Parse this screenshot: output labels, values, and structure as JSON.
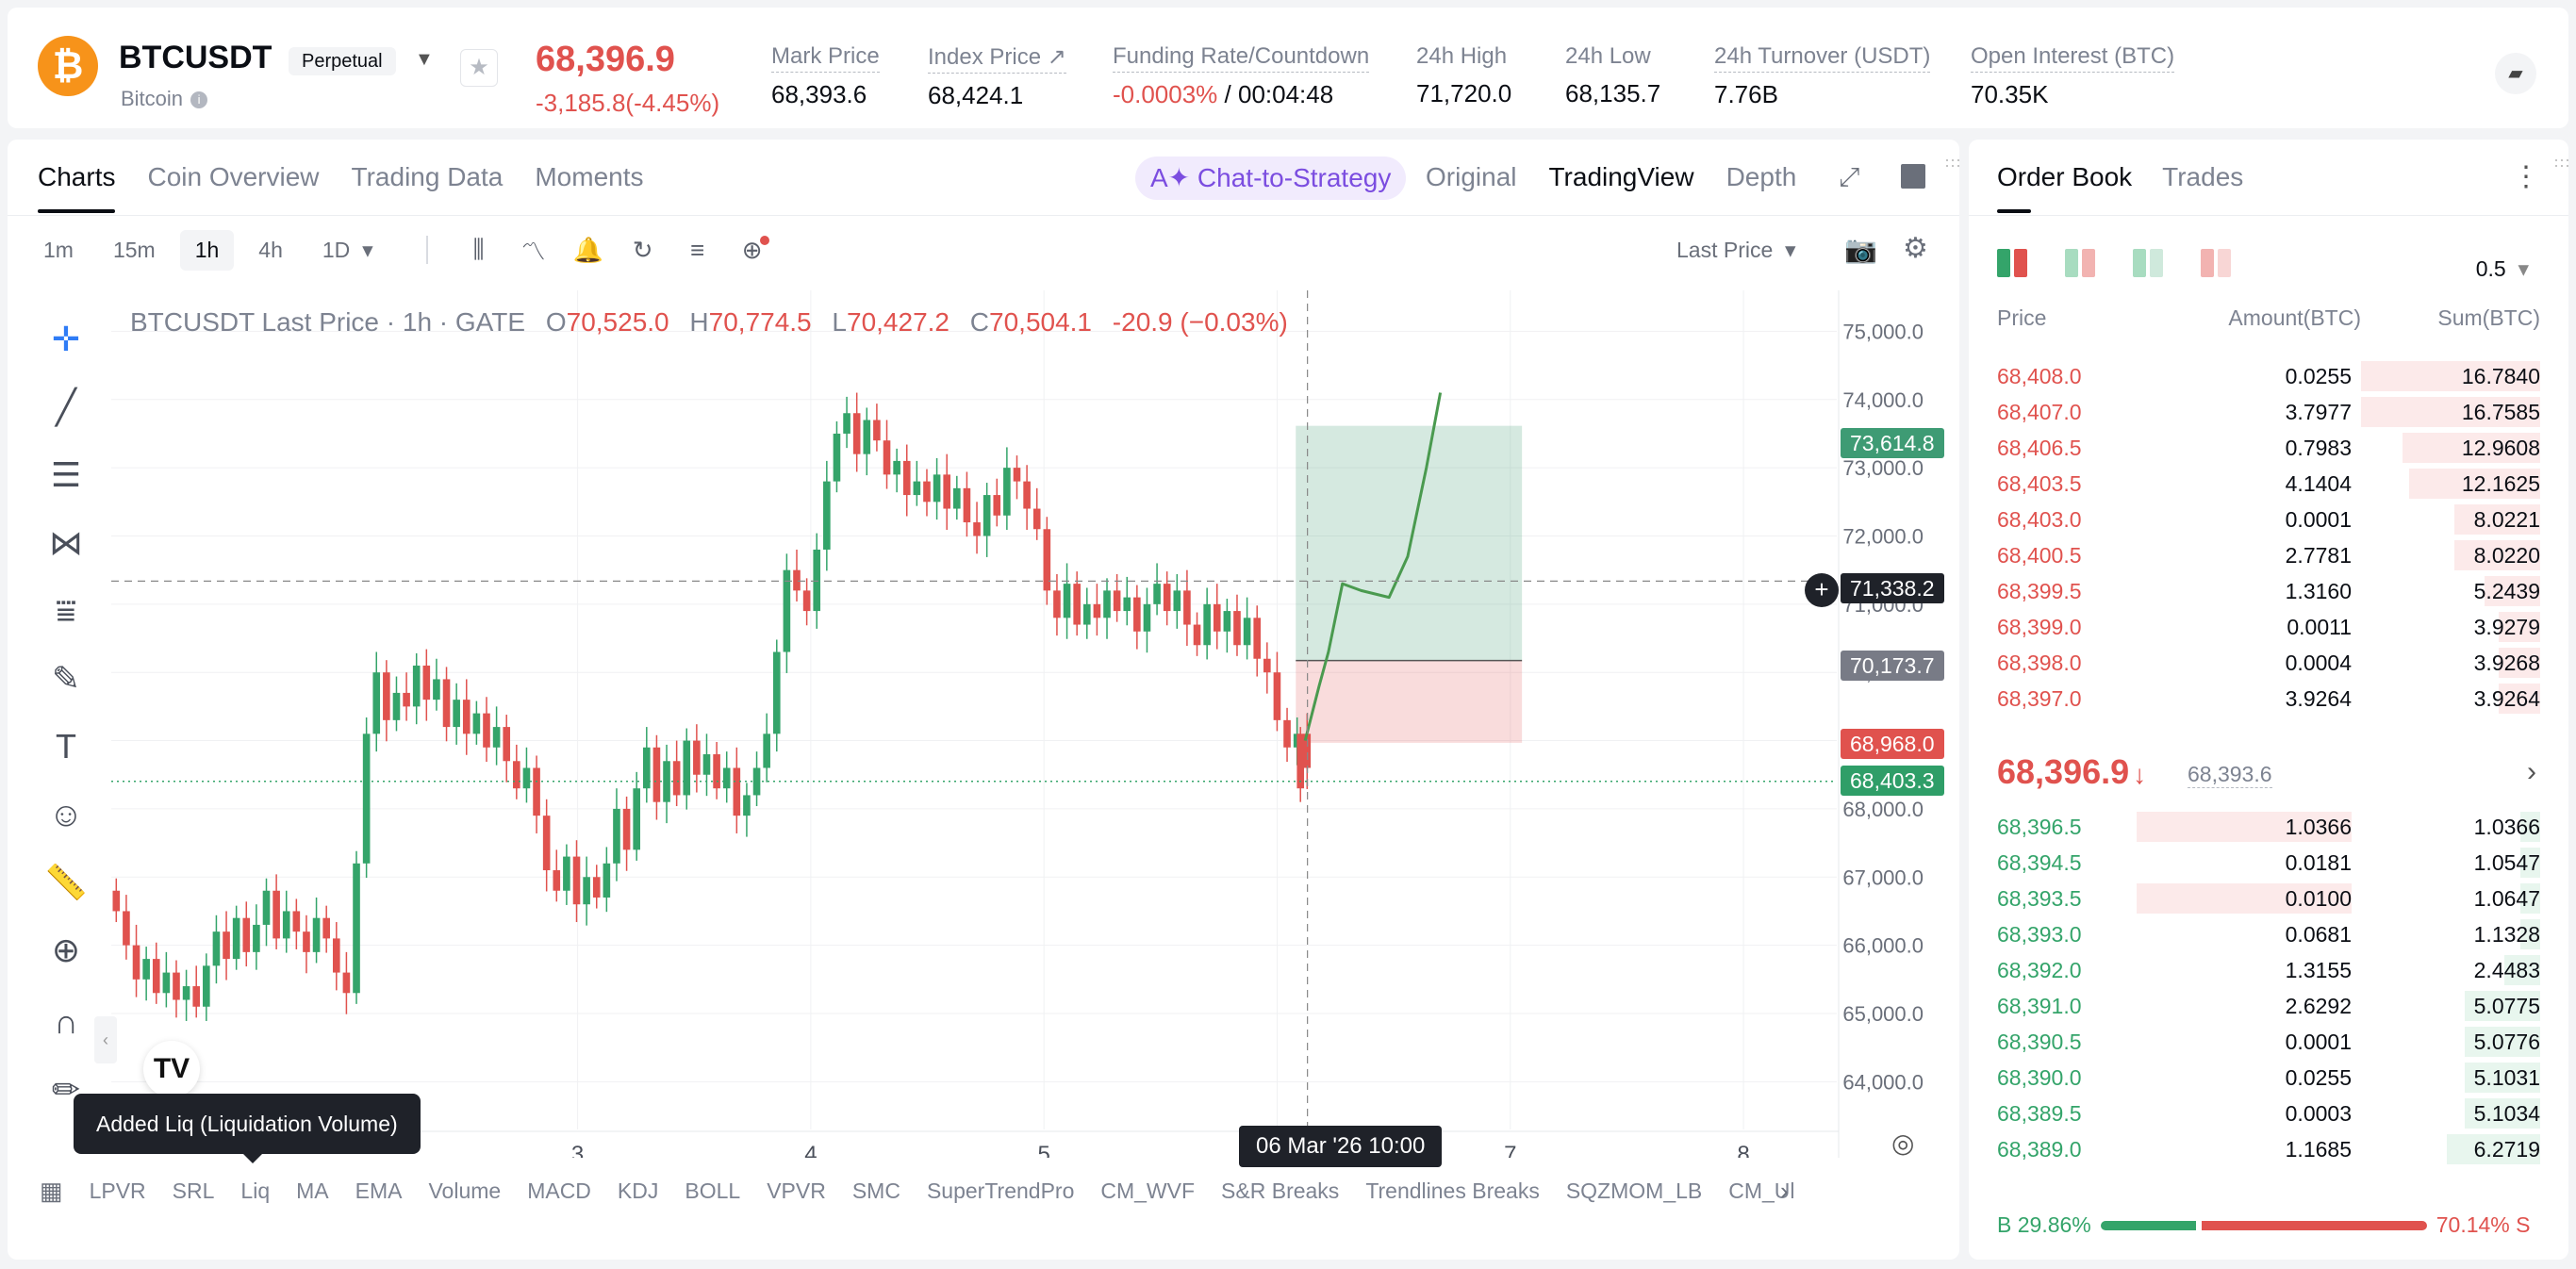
{
  "header": {
    "pair": "BTCUSDT",
    "contract_type": "Perpetual",
    "coin_name": "Bitcoin",
    "last_price": "68,396.9",
    "change": "-3,185.8(-4.45%)",
    "stats": [
      {
        "label": "Mark Price",
        "value": "68,393.6"
      },
      {
        "label": "Index Price ↗",
        "value": "68,424.1"
      },
      {
        "label": "Funding Rate/Countdown",
        "value": "-0.0003%",
        "value2": " / 00:04:48"
      },
      {
        "label": "24h High",
        "value": "71,720.0"
      },
      {
        "label": "24h Low",
        "value": "68,135.7"
      },
      {
        "label": "24h Turnover (USDT)",
        "value": "7.76B"
      },
      {
        "label": "Open Interest (BTC)",
        "value": "70.35K"
      }
    ]
  },
  "chart_panel": {
    "tabs": [
      "Charts",
      "Coin Overview",
      "Trading Data",
      "Moments"
    ],
    "strategy_button": "Chat-to-Strategy",
    "views": [
      "Original",
      "TradingView",
      "Depth"
    ],
    "timeframes": [
      "1m",
      "15m",
      "1h",
      "4h",
      "1D"
    ],
    "active_timeframe": "1h",
    "price_source": "Last Price",
    "ohlc": {
      "title": "BTCUSDT Last Price · 1h · GATE",
      "o_label": "O",
      "o": "70,525.0",
      "h_label": "H",
      "h": "70,774.5",
      "l_label": "L",
      "l": "70,427.2",
      "c_label": "C",
      "c": "70,504.1",
      "change": "-20.9 (−0.03%)"
    },
    "tooltip": "Added Liq (Liquidation Volume)",
    "crosshair_date": "06 Mar '26   10:00",
    "indicators": [
      "LPVR",
      "SRL",
      "Liq",
      "MA",
      "EMA",
      "Volume",
      "MACD",
      "KDJ",
      "BOLL",
      "VPVR",
      "SMC",
      "SuperTrendPro",
      "CM_WVF",
      "S&R Breaks",
      "Trendlines Breaks",
      "SQZMOM_LB",
      "CM_Ul"
    ],
    "price_tags": {
      "target": "73,614.8",
      "crosshair": "71,338.2",
      "entry": "70,173.7",
      "stop": "68,968.0",
      "last": "68,403.3"
    }
  },
  "chart_data": {
    "type": "candlestick",
    "y_ticks": [
      "75,000.0",
      "74,000.0",
      "73,000.0",
      "72,000.0",
      "71,000.0",
      "70,000.0",
      "69,000.0",
      "68,000.0",
      "67,000.0",
      "66,000.0",
      "65,000.0",
      "64,000.0"
    ],
    "y_tick_values": [
      75000,
      74000,
      73000,
      72000,
      71000,
      70000,
      69000,
      68000,
      67000,
      66000,
      65000,
      64000
    ],
    "x_ticks": [
      "3",
      "4",
      "5",
      "7",
      "8"
    ],
    "x_tick_positions": [
      3,
      4,
      5,
      7,
      8
    ],
    "ylim": [
      63300,
      75600
    ],
    "xlim": [
      1.0,
      8.4
    ],
    "position": {
      "entry": 70173.7,
      "target": 73614.8,
      "stop": 68968.0,
      "x_start": 6.08,
      "x_end": 7.05
    },
    "crosshair": {
      "x": 6.13,
      "y": 71338.2
    },
    "last_price": 68403.3,
    "closes": [
      66500,
      66000,
      65500,
      65800,
      65300,
      65600,
      65200,
      65400,
      65100,
      65700,
      66200,
      65800,
      66400,
      65900,
      66300,
      66800,
      66100,
      66500,
      66200,
      65900,
      66400,
      66100,
      65600,
      65300,
      67200,
      69100,
      70000,
      69300,
      69700,
      69500,
      70100,
      69600,
      69900,
      69200,
      69600,
      69100,
      69400,
      68900,
      69200,
      68700,
      68300,
      68600,
      67900,
      67100,
      66800,
      67300,
      66600,
      67000,
      66700,
      67200,
      68000,
      67400,
      68300,
      68900,
      68100,
      68700,
      68200,
      69000,
      68500,
      68800,
      68300,
      68600,
      67900,
      68200,
      68600,
      69100,
      70300,
      71500,
      71200,
      70900,
      71800,
      72800,
      73500,
      73800,
      73200,
      73700,
      73400,
      72900,
      73100,
      72600,
      72800,
      72500,
      72900,
      72400,
      72700,
      72200,
      72000,
      72600,
      72300,
      73000,
      72800,
      72400,
      72100,
      71200,
      70800,
      71300,
      70700,
      71000,
      70800,
      71200,
      70900,
      71100,
      70600,
      71000,
      71300,
      70900,
      71200,
      70700,
      70400,
      71000,
      70600,
      70900,
      70400,
      70800,
      70200,
      70000,
      69300,
      68900,
      69100,
      68600
    ]
  },
  "order_book": {
    "tabs": [
      "Order Book",
      "Trades"
    ],
    "step": "0.5",
    "headers": [
      "Price",
      "Amount(BTC)",
      "Sum(BTC)"
    ],
    "asks": [
      {
        "price": "68,408.0",
        "amount": "0.0255",
        "sum": "16.7840",
        "sum_w": 1.0,
        "amt_w": 0
      },
      {
        "price": "68,407.0",
        "amount": "3.7977",
        "sum": "16.7585",
        "sum_w": 1.0,
        "amt_w": 0
      },
      {
        "price": "68,406.5",
        "amount": "0.7983",
        "sum": "12.9608",
        "sum_w": 0.77,
        "amt_w": 0
      },
      {
        "price": "68,403.5",
        "amount": "4.1404",
        "sum": "12.1625",
        "sum_w": 0.73,
        "amt_w": 0
      },
      {
        "price": "68,403.0",
        "amount": "0.0001",
        "sum": "8.0221",
        "sum_w": 0.48,
        "amt_w": 0
      },
      {
        "price": "68,400.5",
        "amount": "2.7781",
        "sum": "8.0220",
        "sum_w": 0.48,
        "amt_w": 0
      },
      {
        "price": "68,399.5",
        "amount": "1.3160",
        "sum": "5.2439",
        "sum_w": 0.31,
        "amt_w": 0
      },
      {
        "price": "68,399.0",
        "amount": "0.0011",
        "sum": "3.9279",
        "sum_w": 0.23,
        "amt_w": 0
      },
      {
        "price": "68,398.0",
        "amount": "0.0004",
        "sum": "3.9268",
        "sum_w": 0.23,
        "amt_w": 0
      },
      {
        "price": "68,397.0",
        "amount": "3.9264",
        "sum": "3.9264",
        "sum_w": 0.23,
        "amt_w": 0
      }
    ],
    "mid_price": "68,396.9",
    "mid_mark": "68,393.6",
    "bids": [
      {
        "price": "68,396.5",
        "amount": "1.0366",
        "sum": "1.0366",
        "sum_w": 0.11,
        "amt_w": 1.0
      },
      {
        "price": "68,394.5",
        "amount": "0.0181",
        "sum": "1.0547",
        "sum_w": 0.11,
        "amt_w": 0
      },
      {
        "price": "68,393.5",
        "amount": "0.0100",
        "sum": "1.0647",
        "sum_w": 0.11,
        "amt_w": 1.0
      },
      {
        "price": "68,393.0",
        "amount": "0.0681",
        "sum": "1.1328",
        "sum_w": 0.11,
        "amt_w": 0
      },
      {
        "price": "68,392.0",
        "amount": "1.3155",
        "sum": "2.4483",
        "sum_w": 0.2,
        "amt_w": 0
      },
      {
        "price": "68,391.0",
        "amount": "2.6292",
        "sum": "5.0775",
        "sum_w": 0.42,
        "amt_w": 0
      },
      {
        "price": "68,390.5",
        "amount": "0.0001",
        "sum": "5.0776",
        "sum_w": 0.42,
        "amt_w": 0
      },
      {
        "price": "68,390.0",
        "amount": "0.0255",
        "sum": "5.1031",
        "sum_w": 0.42,
        "amt_w": 0
      },
      {
        "price": "68,389.5",
        "amount": "0.0003",
        "sum": "5.1034",
        "sum_w": 0.42,
        "amt_w": 0
      },
      {
        "price": "68,389.0",
        "amount": "1.1685",
        "sum": "6.2719",
        "sum_w": 0.52,
        "amt_w": 0
      }
    ],
    "buy_ratio": "B 29.86%",
    "sell_ratio": "70.14% S",
    "buy_frac": 0.2986
  },
  "colors": {
    "up": "#34a46a",
    "down": "#e0524e",
    "accent": "#7b4de0"
  }
}
